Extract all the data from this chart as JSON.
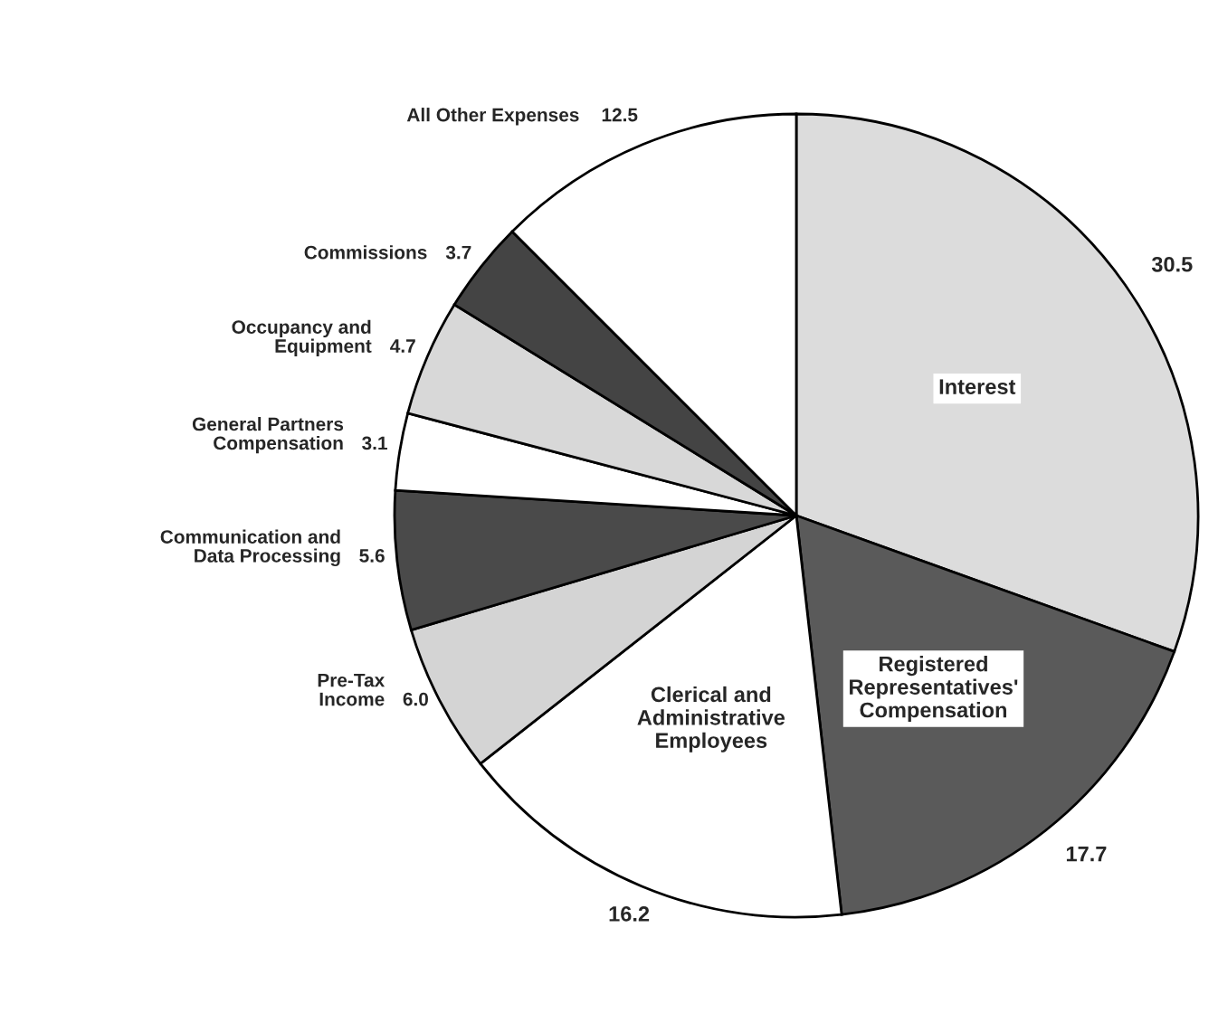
{
  "chart_data": {
    "type": "pie",
    "categories": [
      "Interest",
      "Registered\nRepresentatives'\nCompensation",
      "Clerical and\nAdministrative\nEmployees",
      "Pre-Tax\nIncome",
      "Communication and\nData Processing",
      "General Partners\nCompensation",
      "Occupancy and\nEquipment",
      "Commissions",
      "All Other Expenses"
    ],
    "values": [
      30.5,
      17.7,
      16.2,
      6.0,
      5.6,
      3.1,
      4.7,
      3.7,
      12.5
    ],
    "colors": [
      "#dcdcdc",
      "#5a5a5a",
      "#ffffff",
      "#d4d4d4",
      "#4a4a4a",
      "#ffffff",
      "#d8d8d8",
      "#444444",
      "#ffffff"
    ],
    "value_labels": [
      "30.5",
      "17.7",
      "16.2",
      "6.0",
      "5.6",
      "3.1",
      "4.7",
      "3.7",
      "12.5"
    ]
  }
}
